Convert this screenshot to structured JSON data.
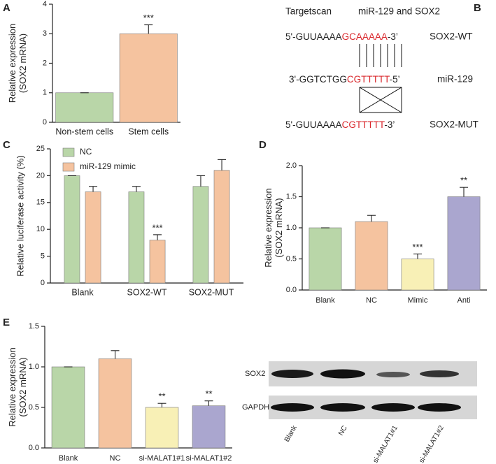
{
  "chart_data": [
    {
      "panel": "A",
      "type": "bar",
      "y_label": [
        "Relative expression",
        "(SOX2 mRNA)"
      ],
      "categories": [
        "Non-stem cells",
        "Stem cells"
      ],
      "values": [
        1,
        3
      ],
      "errors": [
        0,
        0.3
      ],
      "colors": [
        "#b9d6a8",
        "#f5c39f"
      ],
      "ylim": [
        0,
        4
      ],
      "yticks": [
        0,
        1,
        2,
        3,
        4
      ],
      "annotations": [
        {
          "category": "Stem cells",
          "text": "***"
        }
      ]
    },
    {
      "panel": "C",
      "type": "bar",
      "y_label": [
        "Relative luciferase activity (%)"
      ],
      "categories": [
        "Blank",
        "SOX2-WT",
        "SOX2-MUT"
      ],
      "series": [
        {
          "name": "NC",
          "color": "#b9d6a8",
          "values": [
            20,
            17,
            18
          ],
          "errors": [
            0,
            1,
            2
          ]
        },
        {
          "name": "miR-129 mimic",
          "color": "#f5c39f",
          "values": [
            17,
            8,
            21
          ],
          "errors": [
            1,
            1,
            2
          ]
        }
      ],
      "ylim": [
        0,
        25
      ],
      "yticks": [
        0,
        5,
        10,
        15,
        20,
        25
      ],
      "legend": "upper left",
      "annotations": [
        {
          "series": "miR-129 mimic",
          "category": "SOX2-WT",
          "text": "***"
        }
      ]
    },
    {
      "panel": "D",
      "type": "bar",
      "y_label": [
        "Relative expression",
        "(SOX2 mRNA)"
      ],
      "categories": [
        "Blank",
        "NC",
        "Mimic",
        "Anti"
      ],
      "values": [
        1.0,
        1.1,
        0.5,
        1.5
      ],
      "errors": [
        0,
        0.1,
        0.08,
        0.15
      ],
      "colors": [
        "#b9d6a8",
        "#f5c39f",
        "#f8f0b6",
        "#aaa6cf"
      ],
      "ylim": [
        0,
        2
      ],
      "yticks": [
        {
          "value": 0,
          "label": "0.0"
        },
        {
          "value": 0.5,
          "label": "0.5"
        },
        {
          "value": 1,
          "label": "1.0"
        },
        {
          "value": 1.5,
          "label": "1.5"
        },
        {
          "value": 2,
          "label": "2.0"
        }
      ],
      "annotations": [
        {
          "category": "Mimic",
          "text": "***"
        },
        {
          "category": "Anti",
          "text": "**"
        }
      ]
    },
    {
      "panel": "E",
      "type": "bar",
      "y_label": [
        "Relative expression",
        "(SOX2 mRNA)"
      ],
      "categories": [
        "Blank",
        "NC",
        "si-MALAT1#1",
        "si-MALAT1#2"
      ],
      "values": [
        1.0,
        1.1,
        0.5,
        0.52
      ],
      "errors": [
        0,
        0.1,
        0.05,
        0.06
      ],
      "colors": [
        "#b9d6a8",
        "#f5c39f",
        "#f8f0b6",
        "#aaa6cf"
      ],
      "ylim": [
        0,
        1.5
      ],
      "yticks": [
        {
          "value": 0,
          "label": "0.0"
        },
        {
          "value": 0.5,
          "label": "0.5"
        },
        {
          "value": 1,
          "label": "1.0"
        },
        {
          "value": 1.5,
          "label": "1.5"
        }
      ],
      "annotations": [
        {
          "category": "si-MALAT1#1",
          "text": "**"
        },
        {
          "category": "si-MALAT1#2",
          "text": "**"
        }
      ]
    }
  ],
  "sequence_diagram": {
    "panel": "B",
    "title": [
      "Targetscan",
      "miR-129 and SOX2"
    ],
    "sequences": [
      {
        "parts": [
          "5'-GUUAAAA",
          "GCAAAAA",
          "-3’"
        ],
        "label": "SOX2-WT"
      },
      {
        "parts": [
          "3'-GGTCTGG",
          "CGTTTTT",
          "-5’"
        ],
        "label": "miR-129"
      },
      {
        "parts": [
          "5'-GUUAAAA",
          "CGTTTTT",
          "-3’"
        ],
        "label": "SOX2-MUT"
      }
    ]
  },
  "western_blot": {
    "rows": [
      "SOX2",
      "GAPDH"
    ],
    "lanes": [
      "Blank",
      "NC",
      "si-MALAT1#1",
      "si-MALAT1#2"
    ]
  }
}
